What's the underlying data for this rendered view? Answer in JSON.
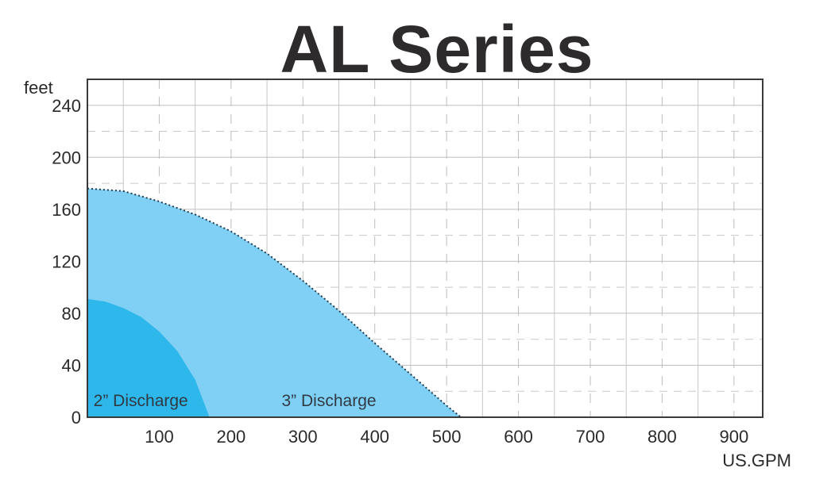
{
  "chart_data": {
    "type": "area",
    "title": "AL Series",
    "xlabel": "US.GPM",
    "ylabel": "feet",
    "xlim": [
      0,
      940
    ],
    "ylim": [
      0,
      260
    ],
    "x_ticks": [
      100,
      200,
      300,
      400,
      500,
      600,
      700,
      800,
      900
    ],
    "y_ticks": [
      0,
      40,
      80,
      120,
      160,
      200,
      240
    ],
    "grid": true,
    "series": [
      {
        "name": "3” Discharge",
        "color": "#7fd0f4",
        "x": [
          0,
          50,
          100,
          150,
          200,
          250,
          300,
          350,
          400,
          450,
          500,
          520
        ],
        "y": [
          176,
          174,
          166,
          156,
          143,
          126,
          105,
          82,
          57,
          33,
          9,
          0
        ]
      },
      {
        "name": "2” Discharge",
        "color": "#2eb7ea",
        "x": [
          0,
          25,
          50,
          75,
          100,
          125,
          150,
          170
        ],
        "y": [
          91,
          89,
          84,
          77,
          66,
          51,
          29,
          0
        ]
      }
    ]
  }
}
